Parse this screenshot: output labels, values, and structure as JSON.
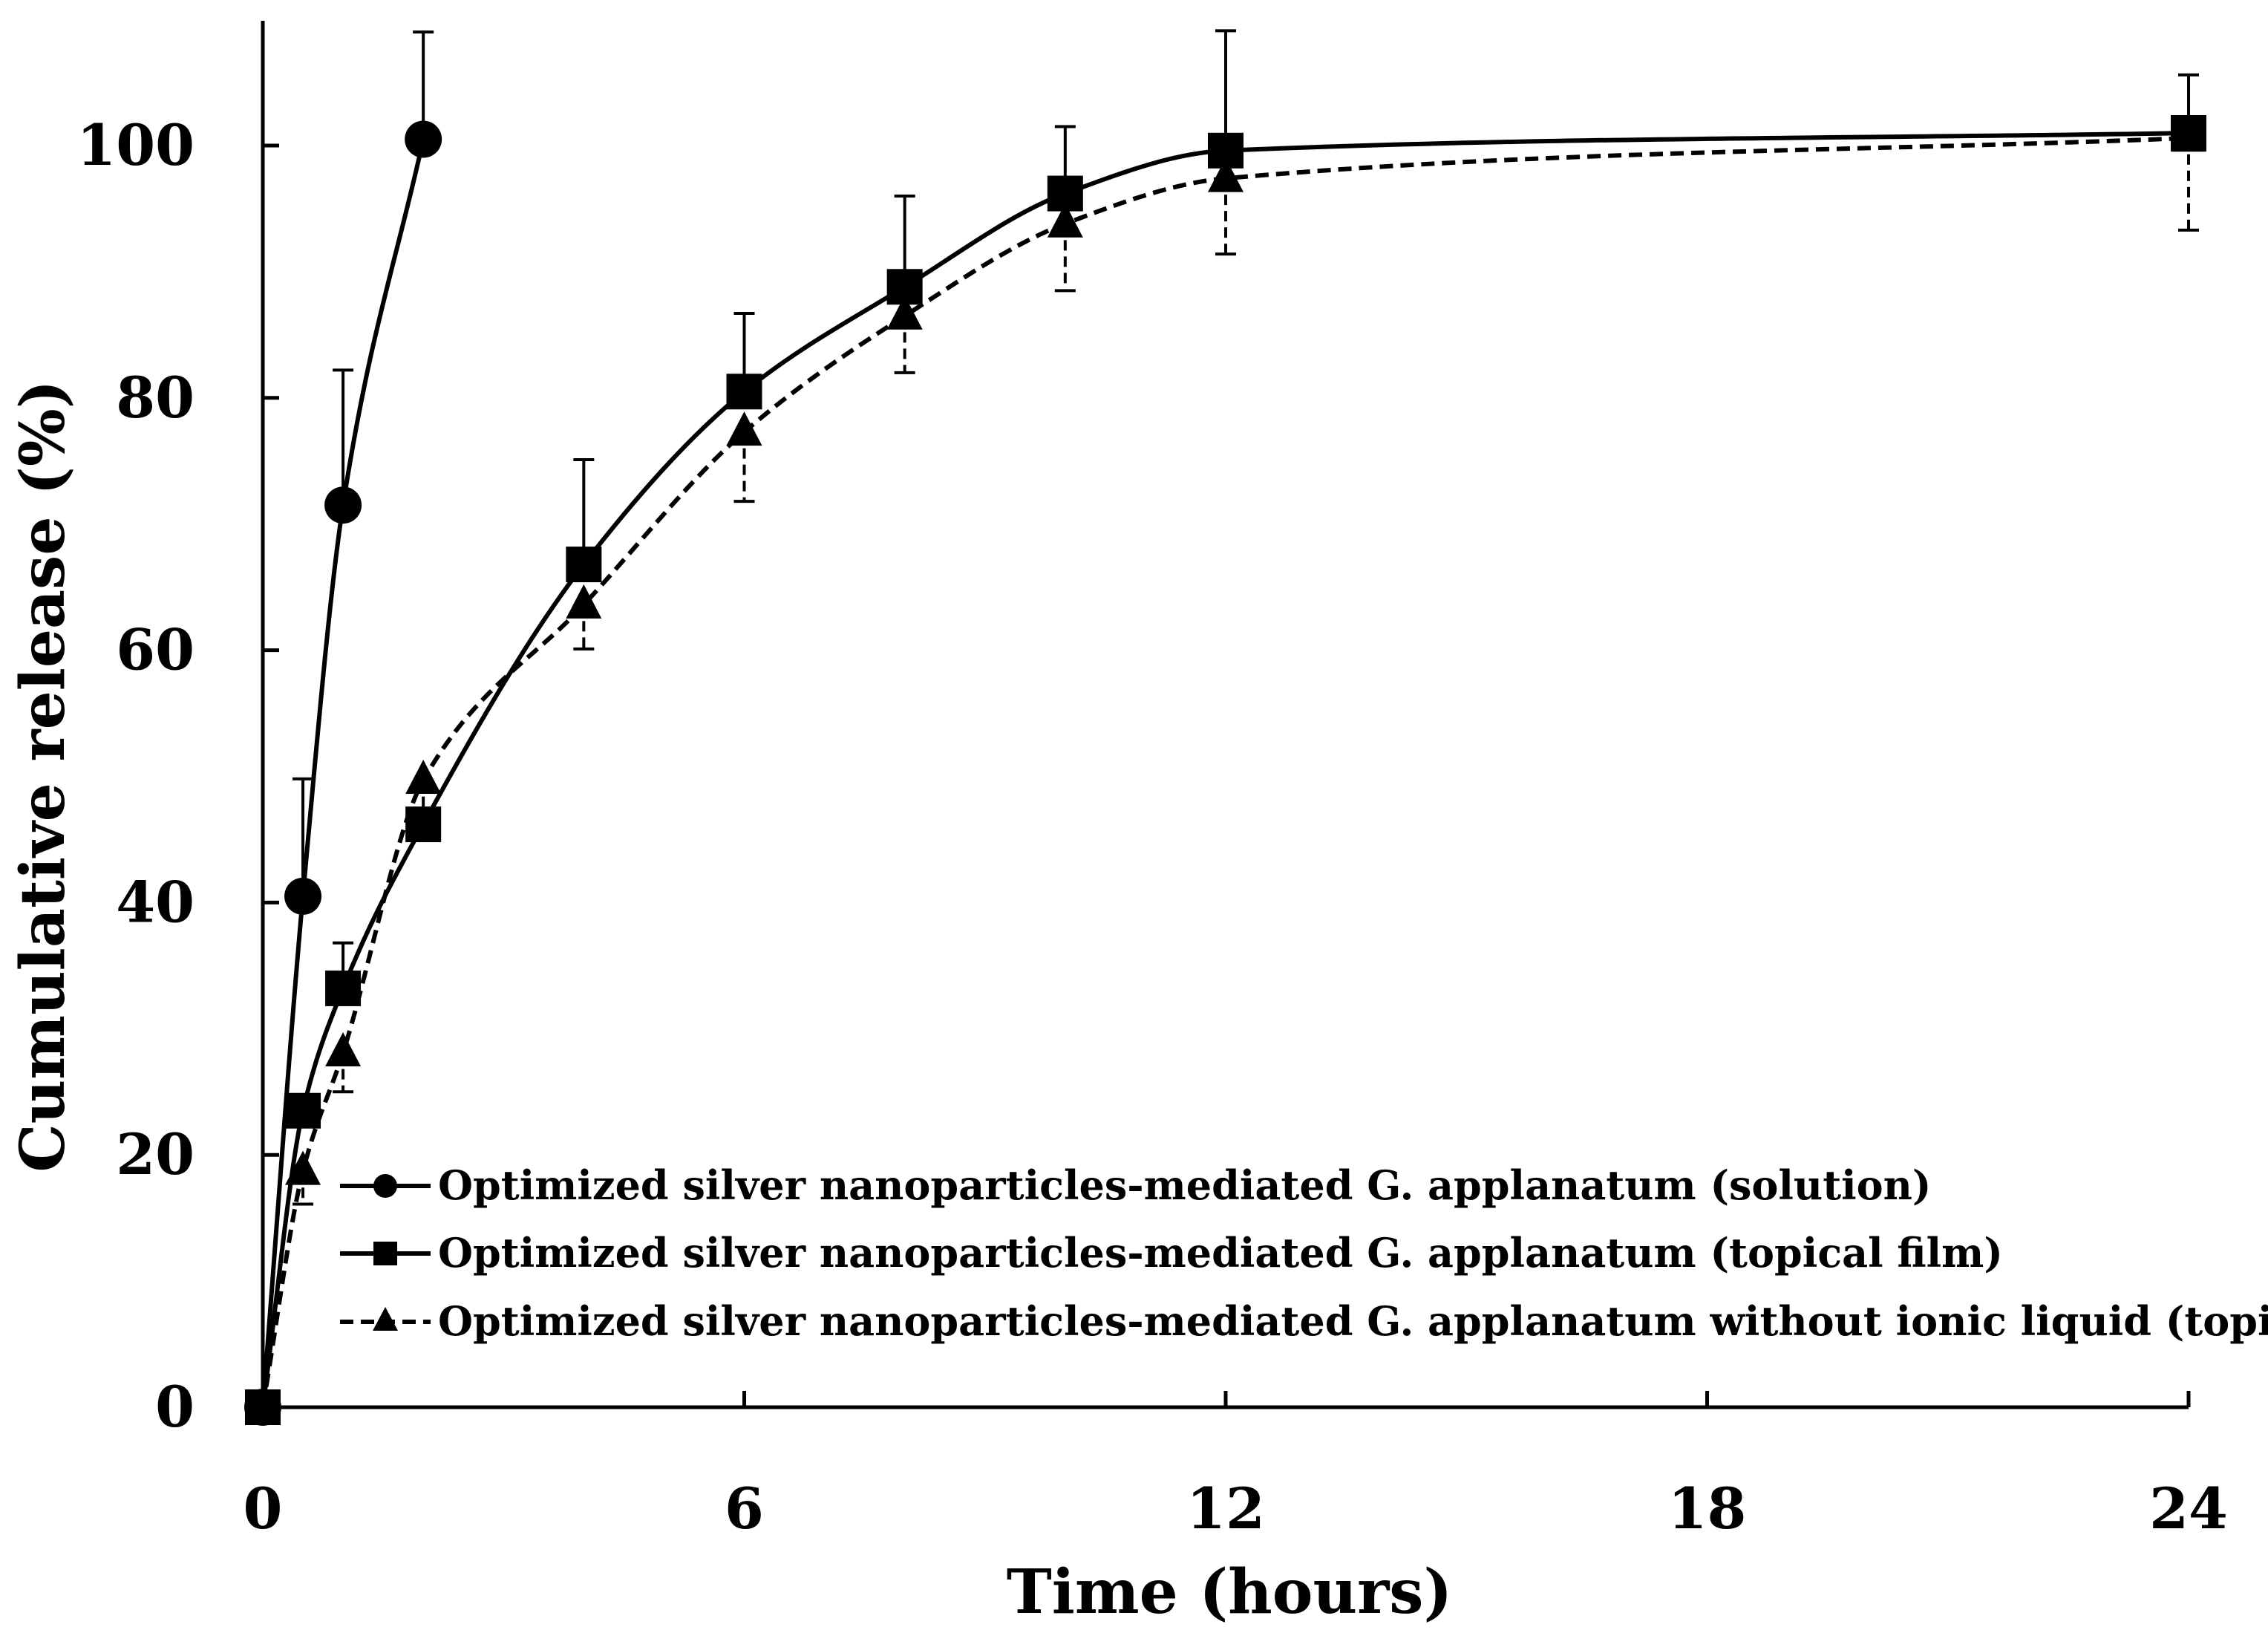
{
  "chart_data": {
    "type": "line",
    "title": "",
    "xlabel": "Time (hours)",
    "ylabel": "Cumulative release (%)",
    "xlim": [
      0,
      24
    ],
    "ylim": [
      0,
      100
    ],
    "x_ticks": [
      0,
      6,
      12,
      18,
      24
    ],
    "y_ticks": [
      0,
      20,
      40,
      60,
      80,
      100
    ],
    "x_tick_labels": [
      "0",
      "6",
      "12",
      "18",
      "24"
    ],
    "y_tick_labels": [
      "0",
      "20",
      "40",
      "60",
      "80",
      "100"
    ],
    "grid": false,
    "legend_position": "bottom-right",
    "series": [
      {
        "name": "Optimized silver nanoparticles-mediated G. applanatum (solution)",
        "marker": "circle",
        "line_style": "solid",
        "x": [
          0,
          0.5,
          1,
          2
        ],
        "y": [
          0,
          40.5,
          71.5,
          100.5
        ],
        "error": [
          0,
          9.3,
          10.7,
          8.5
        ]
      },
      {
        "name": "Optimized silver nanoparticles-mediated G. applanatum (topical film)",
        "marker": "square",
        "line_style": "solid",
        "x": [
          0,
          0.5,
          1,
          2,
          4,
          6,
          8,
          10,
          12,
          24
        ],
        "y": [
          0,
          23.5,
          33.2,
          46.2,
          66.8,
          80.5,
          88.8,
          96.2,
          99.6,
          101.0
        ],
        "error": [
          0,
          0,
          3.6,
          0,
          8.3,
          6.2,
          7.2,
          5.3,
          9.5,
          4.6
        ]
      },
      {
        "name": "Optimized silver nanoparticles-mediated G. applanatum without ionic liquid (topical film)",
        "marker": "triangle",
        "line_style": "dashed",
        "x": [
          0,
          0.5,
          1,
          2,
          4,
          6,
          8,
          10,
          12,
          24
        ],
        "y": [
          0,
          18.7,
          28.1,
          49.7,
          63.6,
          77.3,
          86.5,
          93.8,
          97.4,
          100.6
        ],
        "error": [
          0,
          2.6,
          3.1,
          2.7,
          3.5,
          5.5,
          4.5,
          5.3,
          6.0,
          7.3
        ]
      }
    ]
  }
}
